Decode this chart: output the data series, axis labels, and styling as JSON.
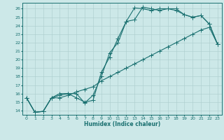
{
  "xlabel": "Humidex (Indice chaleur)",
  "bg_color": "#cce8e8",
  "grid_color": "#aacccc",
  "line_color": "#1a7070",
  "xlim": [
    -0.5,
    23.5
  ],
  "ylim": [
    13.5,
    26.7
  ],
  "xticks": [
    0,
    1,
    2,
    3,
    4,
    5,
    6,
    7,
    8,
    9,
    10,
    11,
    12,
    13,
    14,
    15,
    16,
    17,
    18,
    19,
    20,
    21,
    22,
    23
  ],
  "yticks": [
    14,
    15,
    16,
    17,
    18,
    19,
    20,
    21,
    22,
    23,
    24,
    25,
    26
  ],
  "line1_x": [
    0,
    1,
    2,
    3,
    4,
    5,
    6,
    7,
    8,
    9,
    10,
    11,
    12,
    13,
    14,
    15,
    16,
    17,
    18,
    19,
    20,
    21,
    22,
    23
  ],
  "line1_y": [
    15.5,
    13.8,
    13.9,
    15.5,
    16.0,
    16.0,
    15.5,
    15.0,
    15.2,
    18.5,
    20.3,
    22.5,
    24.5,
    24.7,
    26.2,
    26.0,
    25.8,
    26.0,
    26.0,
    25.3,
    25.0,
    25.2,
    24.2,
    21.8
  ],
  "line2_x": [
    0,
    1,
    2,
    3,
    4,
    5,
    6,
    7,
    8,
    9,
    10,
    11,
    12,
    13,
    14,
    15,
    16,
    17,
    18,
    19,
    20,
    21,
    22,
    23
  ],
  "line2_y": [
    15.5,
    13.8,
    13.9,
    15.5,
    15.8,
    16.0,
    16.0,
    14.9,
    15.8,
    18.0,
    20.8,
    22.0,
    24.5,
    26.1,
    26.0,
    25.8,
    26.0,
    26.0,
    25.8,
    25.3,
    25.0,
    25.2,
    24.2,
    21.8
  ],
  "line3_x": [
    0,
    1,
    2,
    3,
    4,
    5,
    6,
    7,
    8,
    9,
    10,
    11,
    12,
    13,
    14,
    15,
    16,
    17,
    18,
    19,
    20,
    21,
    22,
    23
  ],
  "line3_y": [
    15.5,
    13.8,
    13.9,
    15.5,
    15.5,
    15.8,
    16.2,
    16.5,
    16.8,
    17.5,
    18.0,
    18.5,
    19.0,
    19.5,
    20.0,
    20.5,
    21.0,
    21.5,
    22.0,
    22.5,
    23.0,
    23.5,
    23.8,
    21.8
  ],
  "marker_size": 2.0,
  "line_width": 0.8,
  "tick_fontsize": 4.5,
  "xlabel_fontsize": 5.5
}
